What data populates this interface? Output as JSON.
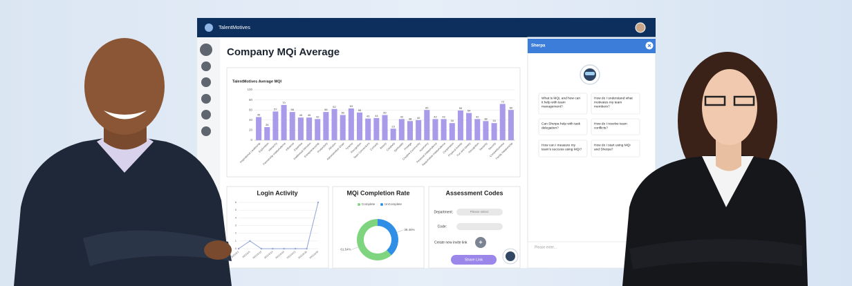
{
  "header": {
    "brand": "TalentMotives"
  },
  "page_title": "Company MQi Average",
  "mqi_chart": {
    "type": "bar",
    "title": "TalentMotives Average MQI",
    "categories": [
      "Inspirational Leadership",
      "Exploration",
      "Hierarchy",
      "Partnership Independence",
      "Influence",
      "Expertise",
      "Intellectual Stimulus",
      "Entrepreneurship",
      "Productivity",
      "Altruism",
      "Administrative Order",
      "Tyranny",
      "Recognition",
      "Team Connections",
      "Curiosity",
      "Beauty",
      "Creativity",
      "Spirituality",
      "Prestige",
      "Creative Community",
      "Autonomy",
      "Personal Independence",
      "Responsible Independence",
      "Cooperation",
      "Physical Activity",
      "Fun and Variety",
      "Recognition",
      "Seniority",
      "Security",
      "Competitiveness",
      "Family Relationship"
    ],
    "values": [
      46,
      26,
      57,
      70,
      56,
      45,
      45,
      42,
      56,
      62,
      50,
      63,
      55,
      43,
      44,
      50,
      23,
      42,
      38,
      40,
      60,
      42,
      42,
      34,
      59,
      54,
      42,
      38,
      34,
      72,
      60
    ],
    "ylim": [
      0,
      100
    ],
    "yticks": [
      0,
      20,
      40,
      60,
      80,
      100
    ],
    "color": "#a99be9",
    "grid": true
  },
  "login_chart": {
    "type": "line",
    "title": "Login Activity",
    "categories": [
      "2021/6/1",
      "2021/6/5",
      "2021/6/10",
      "2021/6/14",
      "2021/6/18",
      "2021/6/22",
      "2021/6/26",
      "2021/6/30"
    ],
    "values": [
      0,
      1,
      0,
      0,
      0,
      0,
      0,
      6
    ],
    "ylim": [
      0,
      6
    ],
    "yticks": [
      0,
      1,
      2,
      3,
      4,
      5,
      6
    ],
    "color": "#8ea2dc",
    "grid": true
  },
  "completion_chart": {
    "type": "pie",
    "title": "MQi Completion Rate",
    "categories": [
      "Complete",
      "UnComplete"
    ],
    "values": [
      61.54,
      38.46
    ],
    "value_labels": [
      "61.54%",
      "38.46%"
    ],
    "colors": [
      "#7fd47f",
      "#2f8fe6"
    ]
  },
  "assessment": {
    "title": "Assessment Codes",
    "department_label": "Department:",
    "department_placeholder": "Please select",
    "code_label": "Code:",
    "invite_label": "Create new invite link",
    "add_button": "+",
    "share_button": "Share Link"
  },
  "sherpa": {
    "title": "Sherpa",
    "questions": [
      [
        "What is MQi, and how can",
        "it help with team",
        "management?"
      ],
      [
        "How do I understand what",
        "motivates my team",
        "members?"
      ],
      [
        "Can Sherpa help with task",
        "delegation?"
      ],
      [
        "How do I resolve team",
        "conflicts?"
      ],
      [
        "How can I measure my",
        "team's success using MQi?"
      ],
      [
        "How do I start using MQi",
        "and Sherpa?"
      ]
    ],
    "input_placeholder": "Please enter..."
  }
}
